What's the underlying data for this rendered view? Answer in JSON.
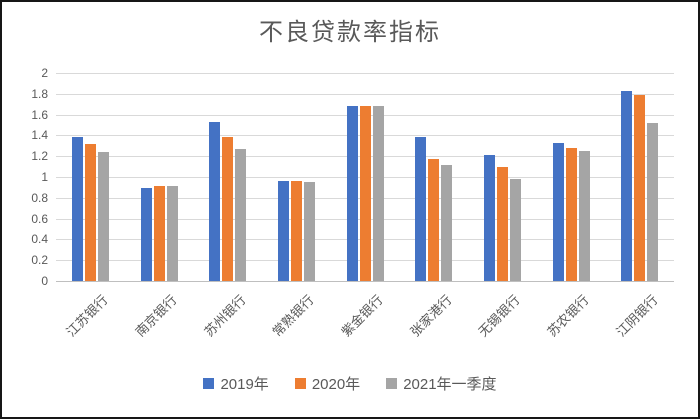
{
  "page": {
    "background_color": "#ffffff",
    "frame_border_color": "#161616",
    "text_color": "#595959",
    "gridline_color": "#d9d9d9",
    "axis_line_color": "#bfbfbf"
  },
  "chart_data": {
    "type": "bar",
    "title": "不良贷款率指标",
    "categories": [
      "江苏银行",
      "南京银行",
      "苏州银行",
      "常熟银行",
      "紫金银行",
      "张家港行",
      "无锡银行",
      "苏农银行",
      "江阴银行"
    ],
    "series": [
      {
        "name": "2019年",
        "color": "#4472C4",
        "values": [
          1.38,
          0.89,
          1.53,
          0.96,
          1.68,
          1.38,
          1.21,
          1.33,
          1.83
        ]
      },
      {
        "name": "2020年",
        "color": "#ED7D31",
        "values": [
          1.32,
          0.91,
          1.38,
          0.96,
          1.68,
          1.17,
          1.1,
          1.28,
          1.79
        ]
      },
      {
        "name": "2021年一季度",
        "color": "#A5A5A5",
        "values": [
          1.24,
          0.91,
          1.27,
          0.95,
          1.68,
          1.12,
          0.98,
          1.25,
          1.52
        ]
      }
    ],
    "xlabel": "",
    "ylabel": "",
    "ylim": [
      0,
      2
    ],
    "ytick_step": 0.2,
    "ytick_labels": [
      "0",
      "0.2",
      "0.4",
      "0.6",
      "0.8",
      "1",
      "1.2",
      "1.4",
      "1.6",
      "1.8",
      "2"
    ],
    "grid": true,
    "legend_position": "bottom",
    "x_label_rotation_deg": 45
  }
}
